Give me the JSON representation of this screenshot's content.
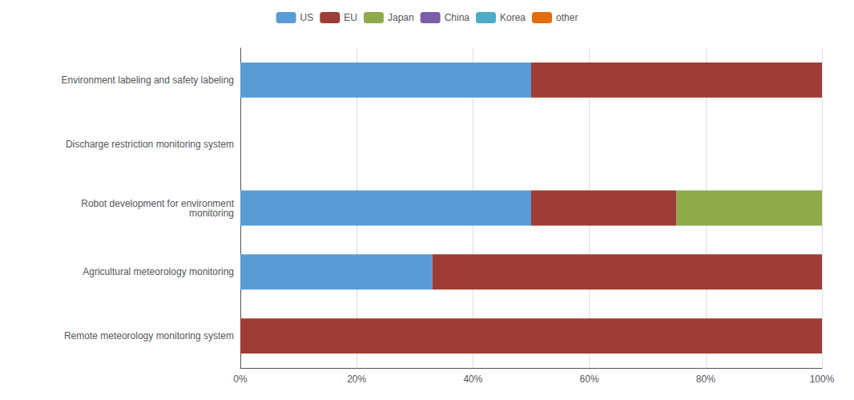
{
  "chart_data": {
    "type": "bar",
    "orientation": "horizontal",
    "stacked": true,
    "categories": [
      "Environment labeling and safety labeling",
      "Discharge restriction monitoring system",
      "Robot development for environment\nmonitoring",
      "Agricultural meteorology monitoring",
      "Remote meteorology monitoring system"
    ],
    "series": [
      {
        "name": "US",
        "color": "#5B9BD5",
        "values": [
          50,
          0,
          50,
          33,
          0
        ]
      },
      {
        "name": "EU",
        "color": "#9E3D35",
        "values": [
          50,
          0,
          25,
          67,
          100
        ]
      },
      {
        "name": "Japan",
        "color": "#8EAA4A",
        "values": [
          0,
          0,
          25,
          0,
          0
        ]
      },
      {
        "name": "China",
        "color": "#7B5EA7",
        "values": [
          0,
          0,
          0,
          0,
          0
        ]
      },
      {
        "name": "Korea",
        "color": "#4BACC6",
        "values": [
          0,
          0,
          0,
          0,
          0
        ]
      },
      {
        "name": "other",
        "color": "#E36C09",
        "values": [
          0,
          0,
          0,
          0,
          0
        ]
      }
    ],
    "xlim": [
      0,
      100
    ],
    "xticks": [
      {
        "value": 0,
        "label": "0%"
      },
      {
        "value": 20,
        "label": "20%"
      },
      {
        "value": 40,
        "label": "40%"
      },
      {
        "value": 60,
        "label": "60%"
      },
      {
        "value": 80,
        "label": "80%"
      },
      {
        "value": 100,
        "label": "100%"
      }
    ],
    "grid": true,
    "legend": "top"
  }
}
